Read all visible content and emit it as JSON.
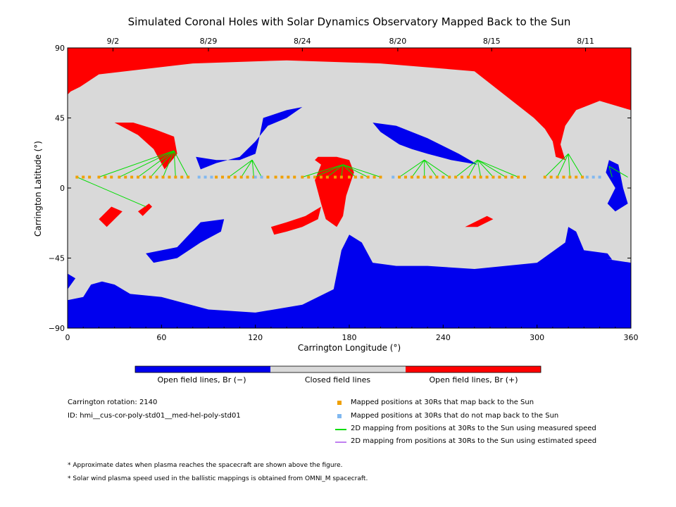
{
  "chart_data": {
    "type": "heatmap",
    "title": "Simulated Coronal Holes with Solar Dynamics Observatory Mapped Back to the Sun",
    "xlabel": "Carrington Longitude (°)",
    "ylabel": "Carrington Latitude (°)",
    "xlim": [
      0,
      360
    ],
    "ylim": [
      -90,
      90
    ],
    "x_ticks": [
      0,
      60,
      120,
      180,
      240,
      300,
      360
    ],
    "y_ticks": [
      -90,
      -45,
      0,
      45,
      90
    ],
    "y_tick_labels": [
      "−90",
      "−45",
      "0",
      "45",
      "90"
    ],
    "top_axis_dates": [
      {
        "label": "9/2",
        "lon": 29
      },
      {
        "label": "8/29",
        "lon": 90
      },
      {
        "label": "8/24",
        "lon": 150
      },
      {
        "label": "8/20",
        "lon": 211
      },
      {
        "label": "8/15",
        "lon": 271
      },
      {
        "label": "8/11",
        "lon": 331
      }
    ],
    "colors": {
      "open_negative": "#0000ee",
      "closed": "#d9d9d9",
      "open_positive": "#ff0000",
      "mapped_back": "#f0a000",
      "not_mapped": "#80b8f0",
      "measured_speed": "#00dd00",
      "estimated_speed": "#c080f0"
    },
    "regions": {
      "open_positive": [
        [
          [
            0,
            90
          ],
          [
            360,
            90
          ],
          [
            360,
            50
          ],
          [
            340,
            56
          ],
          [
            325,
            50
          ],
          [
            318,
            40
          ],
          [
            315,
            28
          ],
          [
            318,
            18
          ],
          [
            312,
            20
          ],
          [
            310,
            30
          ],
          [
            305,
            38
          ],
          [
            298,
            45
          ],
          [
            260,
            75
          ],
          [
            200,
            80
          ],
          [
            140,
            82
          ],
          [
            80,
            80
          ],
          [
            20,
            73
          ],
          [
            8,
            65
          ],
          [
            2,
            62
          ],
          [
            0,
            60
          ]
        ],
        [
          [
            30,
            42
          ],
          [
            42,
            42
          ],
          [
            55,
            38
          ],
          [
            68,
            33
          ],
          [
            70,
            22
          ],
          [
            62,
            12
          ],
          [
            55,
            25
          ],
          [
            45,
            34
          ]
        ],
        [
          [
            160,
            20
          ],
          [
            172,
            20
          ],
          [
            180,
            18
          ],
          [
            183,
            10
          ],
          [
            178,
            -5
          ],
          [
            176,
            -18
          ],
          [
            172,
            -25
          ],
          [
            165,
            -20
          ],
          [
            162,
            -10
          ],
          [
            158,
            5
          ],
          [
            162,
            15
          ],
          [
            158,
            18
          ]
        ],
        [
          [
            130,
            -25
          ],
          [
            140,
            -22
          ],
          [
            152,
            -18
          ],
          [
            162,
            -12
          ],
          [
            160,
            -20
          ],
          [
            150,
            -25
          ],
          [
            140,
            -28
          ],
          [
            132,
            -30
          ]
        ],
        [
          [
            20,
            -20
          ],
          [
            28,
            -12
          ],
          [
            35,
            -15
          ],
          [
            30,
            -20
          ],
          [
            25,
            -25
          ]
        ],
        [
          [
            45,
            -15
          ],
          [
            52,
            -10
          ],
          [
            54,
            -12
          ],
          [
            48,
            -18
          ]
        ],
        [
          [
            254,
            -25
          ],
          [
            268,
            -18
          ],
          [
            272,
            -20
          ],
          [
            262,
            -25
          ]
        ]
      ],
      "open_negative": [
        [
          [
            0,
            -90
          ],
          [
            360,
            -90
          ],
          [
            360,
            -48
          ],
          [
            340,
            -45
          ],
          [
            330,
            -40
          ],
          [
            325,
            -28
          ],
          [
            320,
            -25
          ],
          [
            318,
            -35
          ],
          [
            300,
            -48
          ],
          [
            260,
            -52
          ],
          [
            230,
            -50
          ],
          [
            210,
            -50
          ],
          [
            195,
            -48
          ],
          [
            188,
            -35
          ],
          [
            180,
            -30
          ],
          [
            175,
            -40
          ],
          [
            170,
            -65
          ],
          [
            150,
            -75
          ],
          [
            120,
            -80
          ],
          [
            90,
            -78
          ],
          [
            60,
            -70
          ],
          [
            40,
            -68
          ],
          [
            30,
            -62
          ],
          [
            22,
            -60
          ],
          [
            15,
            -62
          ],
          [
            10,
            -70
          ],
          [
            0,
            -72
          ]
        ],
        [
          [
            330,
            -40
          ],
          [
            345,
            -42
          ],
          [
            348,
            -46
          ],
          [
            335,
            -45
          ]
        ],
        [
          [
            0,
            -65
          ],
          [
            5,
            -58
          ],
          [
            0,
            -55
          ]
        ],
        [
          [
            50,
            -42
          ],
          [
            70,
            -38
          ],
          [
            85,
            -22
          ],
          [
            100,
            -20
          ],
          [
            98,
            -28
          ],
          [
            85,
            -35
          ],
          [
            70,
            -45
          ],
          [
            55,
            -48
          ]
        ],
        [
          [
            82,
            20
          ],
          [
            95,
            18
          ],
          [
            110,
            18
          ],
          [
            120,
            22
          ],
          [
            122,
            30
          ],
          [
            125,
            45
          ],
          [
            140,
            50
          ],
          [
            150,
            52
          ],
          [
            140,
            45
          ],
          [
            128,
            40
          ],
          [
            120,
            30
          ],
          [
            110,
            20
          ],
          [
            95,
            16
          ],
          [
            85,
            12
          ]
        ],
        [
          [
            195,
            42
          ],
          [
            210,
            40
          ],
          [
            230,
            32
          ],
          [
            250,
            22
          ],
          [
            262,
            15
          ],
          [
            245,
            18
          ],
          [
            230,
            22
          ],
          [
            220,
            25
          ],
          [
            212,
            28
          ],
          [
            200,
            36
          ]
        ],
        [
          [
            346,
            18
          ],
          [
            352,
            15
          ],
          [
            355,
            0
          ],
          [
            358,
            -10
          ],
          [
            350,
            -15
          ],
          [
            345,
            -10
          ],
          [
            350,
            0
          ],
          [
            344,
            10
          ]
        ]
      ]
    },
    "mapped_points_back": [
      6,
      10,
      14,
      20,
      24,
      28,
      33,
      37,
      41,
      45,
      49,
      53,
      57,
      61,
      65,
      69,
      73,
      77,
      95,
      99,
      103,
      107,
      111,
      115,
      119,
      124,
      128,
      133,
      137,
      141,
      145,
      150,
      154,
      158,
      162,
      166,
      171,
      175,
      180,
      184,
      188,
      192,
      196,
      200,
      212,
      216,
      220,
      224,
      228,
      232,
      236,
      240,
      244,
      248,
      252,
      256,
      260,
      264,
      268,
      272,
      276,
      280,
      284,
      288,
      292,
      305,
      309,
      313,
      317,
      321,
      325,
      329
    ],
    "mapped_points_not": [
      84,
      88,
      92,
      120,
      124,
      208,
      332,
      336,
      340
    ],
    "mapped_points_lat": 7,
    "measured_speed_lines": [
      {
        "from": [
          6,
          7
        ],
        "to": [
          50,
          -12
        ]
      },
      {
        "from": [
          20,
          7
        ],
        "to": [
          68,
          24
        ]
      },
      {
        "from": [
          33,
          7
        ],
        "to": [
          68,
          24
        ]
      },
      {
        "from": [
          45,
          7
        ],
        "to": [
          68,
          24
        ]
      },
      {
        "from": [
          53,
          7
        ],
        "to": [
          68,
          24
        ]
      },
      {
        "from": [
          61,
          7
        ],
        "to": [
          68,
          24
        ]
      },
      {
        "from": [
          69,
          7
        ],
        "to": [
          68,
          24
        ]
      },
      {
        "from": [
          77,
          7
        ],
        "to": [
          68,
          24
        ]
      },
      {
        "from": [
          103,
          7
        ],
        "to": [
          118,
          18
        ]
      },
      {
        "from": [
          111,
          7
        ],
        "to": [
          118,
          18
        ]
      },
      {
        "from": [
          119,
          7
        ],
        "to": [
          118,
          18
        ]
      },
      {
        "from": [
          124,
          7
        ],
        "to": [
          118,
          18
        ]
      },
      {
        "from": [
          150,
          7
        ],
        "to": [
          176,
          15
        ]
      },
      {
        "from": [
          158,
          7
        ],
        "to": [
          176,
          15
        ]
      },
      {
        "from": [
          166,
          7
        ],
        "to": [
          176,
          15
        ]
      },
      {
        "from": [
          175,
          7
        ],
        "to": [
          176,
          15
        ]
      },
      {
        "from": [
          184,
          7
        ],
        "to": [
          176,
          15
        ]
      },
      {
        "from": [
          192,
          7
        ],
        "to": [
          176,
          15
        ]
      },
      {
        "from": [
          200,
          7
        ],
        "to": [
          176,
          15
        ]
      },
      {
        "from": [
          212,
          7
        ],
        "to": [
          228,
          18
        ]
      },
      {
        "from": [
          220,
          7
        ],
        "to": [
          228,
          18
        ]
      },
      {
        "from": [
          228,
          7
        ],
        "to": [
          228,
          18
        ]
      },
      {
        "from": [
          236,
          7
        ],
        "to": [
          228,
          18
        ]
      },
      {
        "from": [
          244,
          7
        ],
        "to": [
          228,
          18
        ]
      },
      {
        "from": [
          248,
          7
        ],
        "to": [
          262,
          18
        ]
      },
      {
        "from": [
          256,
          7
        ],
        "to": [
          262,
          18
        ]
      },
      {
        "from": [
          264,
          7
        ],
        "to": [
          262,
          18
        ]
      },
      {
        "from": [
          272,
          7
        ],
        "to": [
          262,
          18
        ]
      },
      {
        "from": [
          280,
          7
        ],
        "to": [
          262,
          18
        ]
      },
      {
        "from": [
          288,
          7
        ],
        "to": [
          262,
          18
        ]
      },
      {
        "from": [
          305,
          7
        ],
        "to": [
          320,
          22
        ]
      },
      {
        "from": [
          313,
          7
        ],
        "to": [
          320,
          22
        ]
      },
      {
        "from": [
          321,
          7
        ],
        "to": [
          320,
          22
        ]
      },
      {
        "from": [
          329,
          7
        ],
        "to": [
          320,
          22
        ]
      },
      {
        "from": [
          348,
          7
        ],
        "to": [
          346,
          14
        ]
      },
      {
        "from": [
          358,
          7
        ],
        "to": [
          346,
          14
        ]
      }
    ],
    "colorbar_labels": [
      "Open field lines, Br (−)",
      "Closed field lines",
      "Open field lines, Br (+)"
    ],
    "legend": [
      {
        "label": "Mapped positions at 30Rs that map back to the Sun",
        "kind": "square",
        "color_key": "mapped_back"
      },
      {
        "label": "Mapped positions at 30Rs that do not map back to the Sun",
        "kind": "square",
        "color_key": "not_mapped"
      },
      {
        "label": "2D mapping from positions at 30Rs to the Sun using measured speed",
        "kind": "line",
        "color_key": "measured_speed"
      },
      {
        "label": "2D mapping from positions at 30Rs to the Sun using estimated speed",
        "kind": "line",
        "color_key": "estimated_speed"
      }
    ]
  },
  "meta": {
    "rotation": "Carrington rotation: 2140",
    "id": "ID: hmi__cus-cor-poly-std01__med-hel-poly-std01"
  },
  "notes": [
    "* Approximate dates when plasma reaches the spacecraft are shown above the figure.",
    "* Solar wind plasma speed used in the ballistic mappings is obtained from OMNI_M spacecraft."
  ]
}
